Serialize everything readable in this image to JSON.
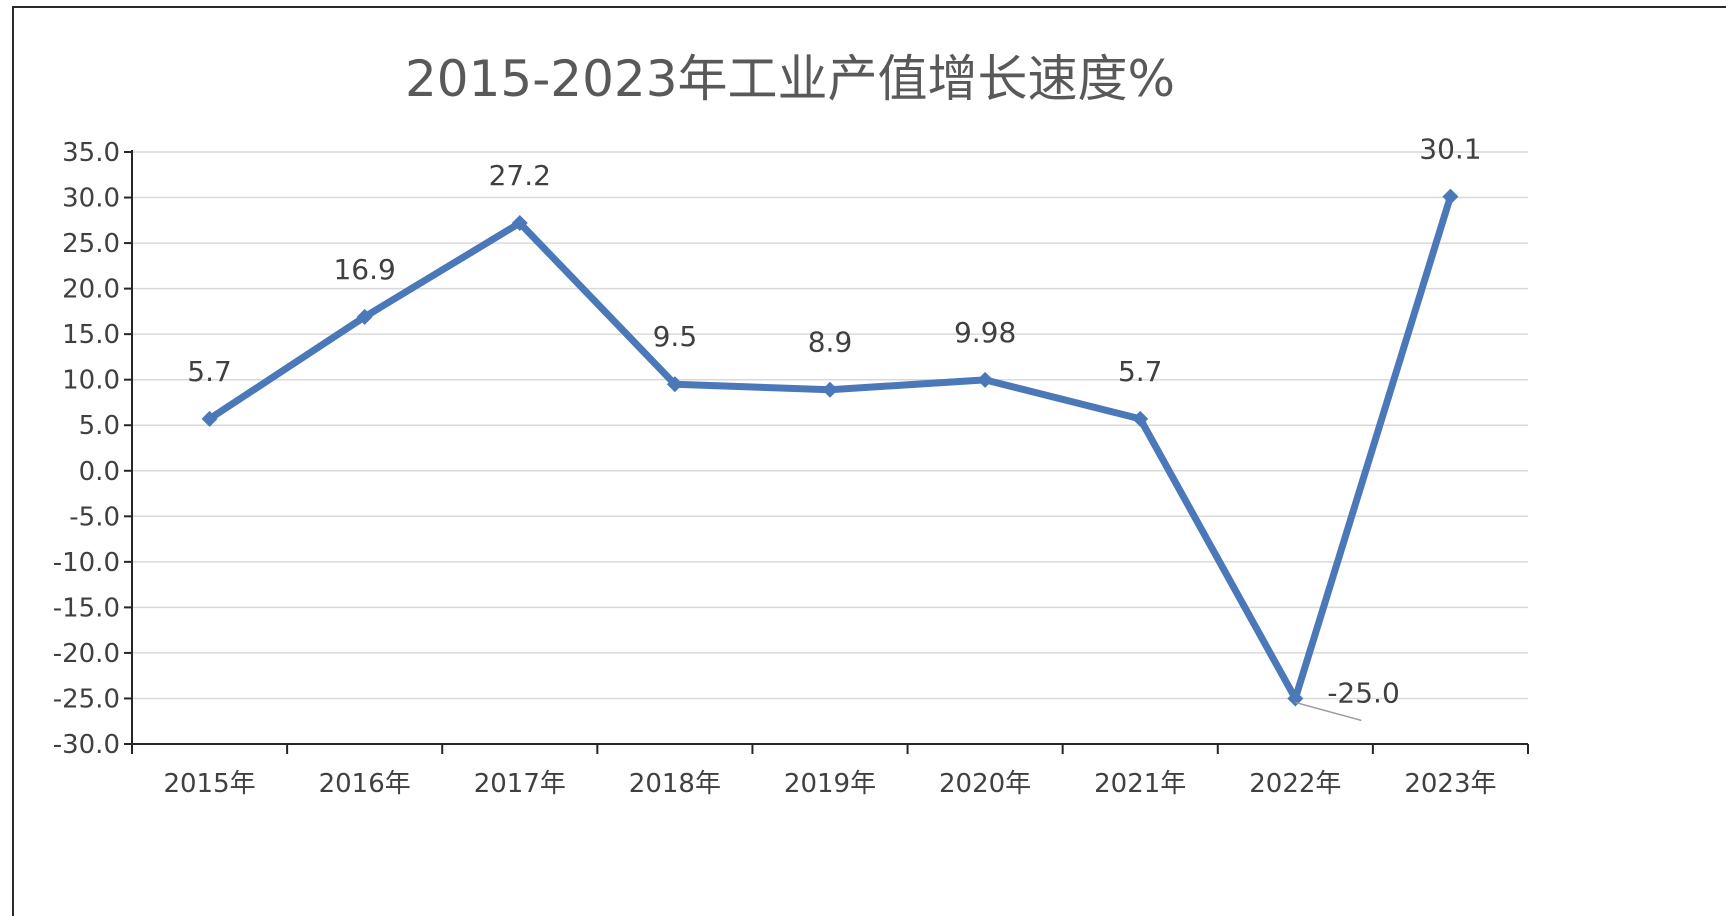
{
  "chart_data": {
    "type": "line",
    "title": "2015-2023年工业产值增长速度%",
    "xlabel": "",
    "ylabel": "",
    "categories": [
      "2015年",
      "2016年",
      "2017年",
      "2018年",
      "2019年",
      "2020年",
      "2021年",
      "2022年",
      "2023年"
    ],
    "series": [
      {
        "values": [
          5.7,
          16.9,
          27.2,
          9.5,
          8.9,
          9.98,
          5.7,
          -25.0,
          30.1
        ],
        "labels": [
          "5.7",
          "16.9",
          "27.2",
          "9.5",
          "8.9",
          "9.98",
          "5.7",
          "-25.0",
          "30.1"
        ]
      }
    ],
    "ylim": [
      -30,
      35
    ],
    "ytick_labels": [
      "35.0",
      "30.0",
      "25.0",
      "20.0",
      "15.0",
      "10.0",
      "5.0",
      "0.0",
      "-5.0",
      "-10.0",
      "-15.0",
      "-20.0",
      "-25.0",
      "-30.0"
    ],
    "grid": true,
    "legend": "none",
    "colors": {
      "line": "#4a78b8",
      "grid": "#d9d9d9",
      "axis": "#262626",
      "text": "#404040",
      "title": "#595959"
    }
  }
}
